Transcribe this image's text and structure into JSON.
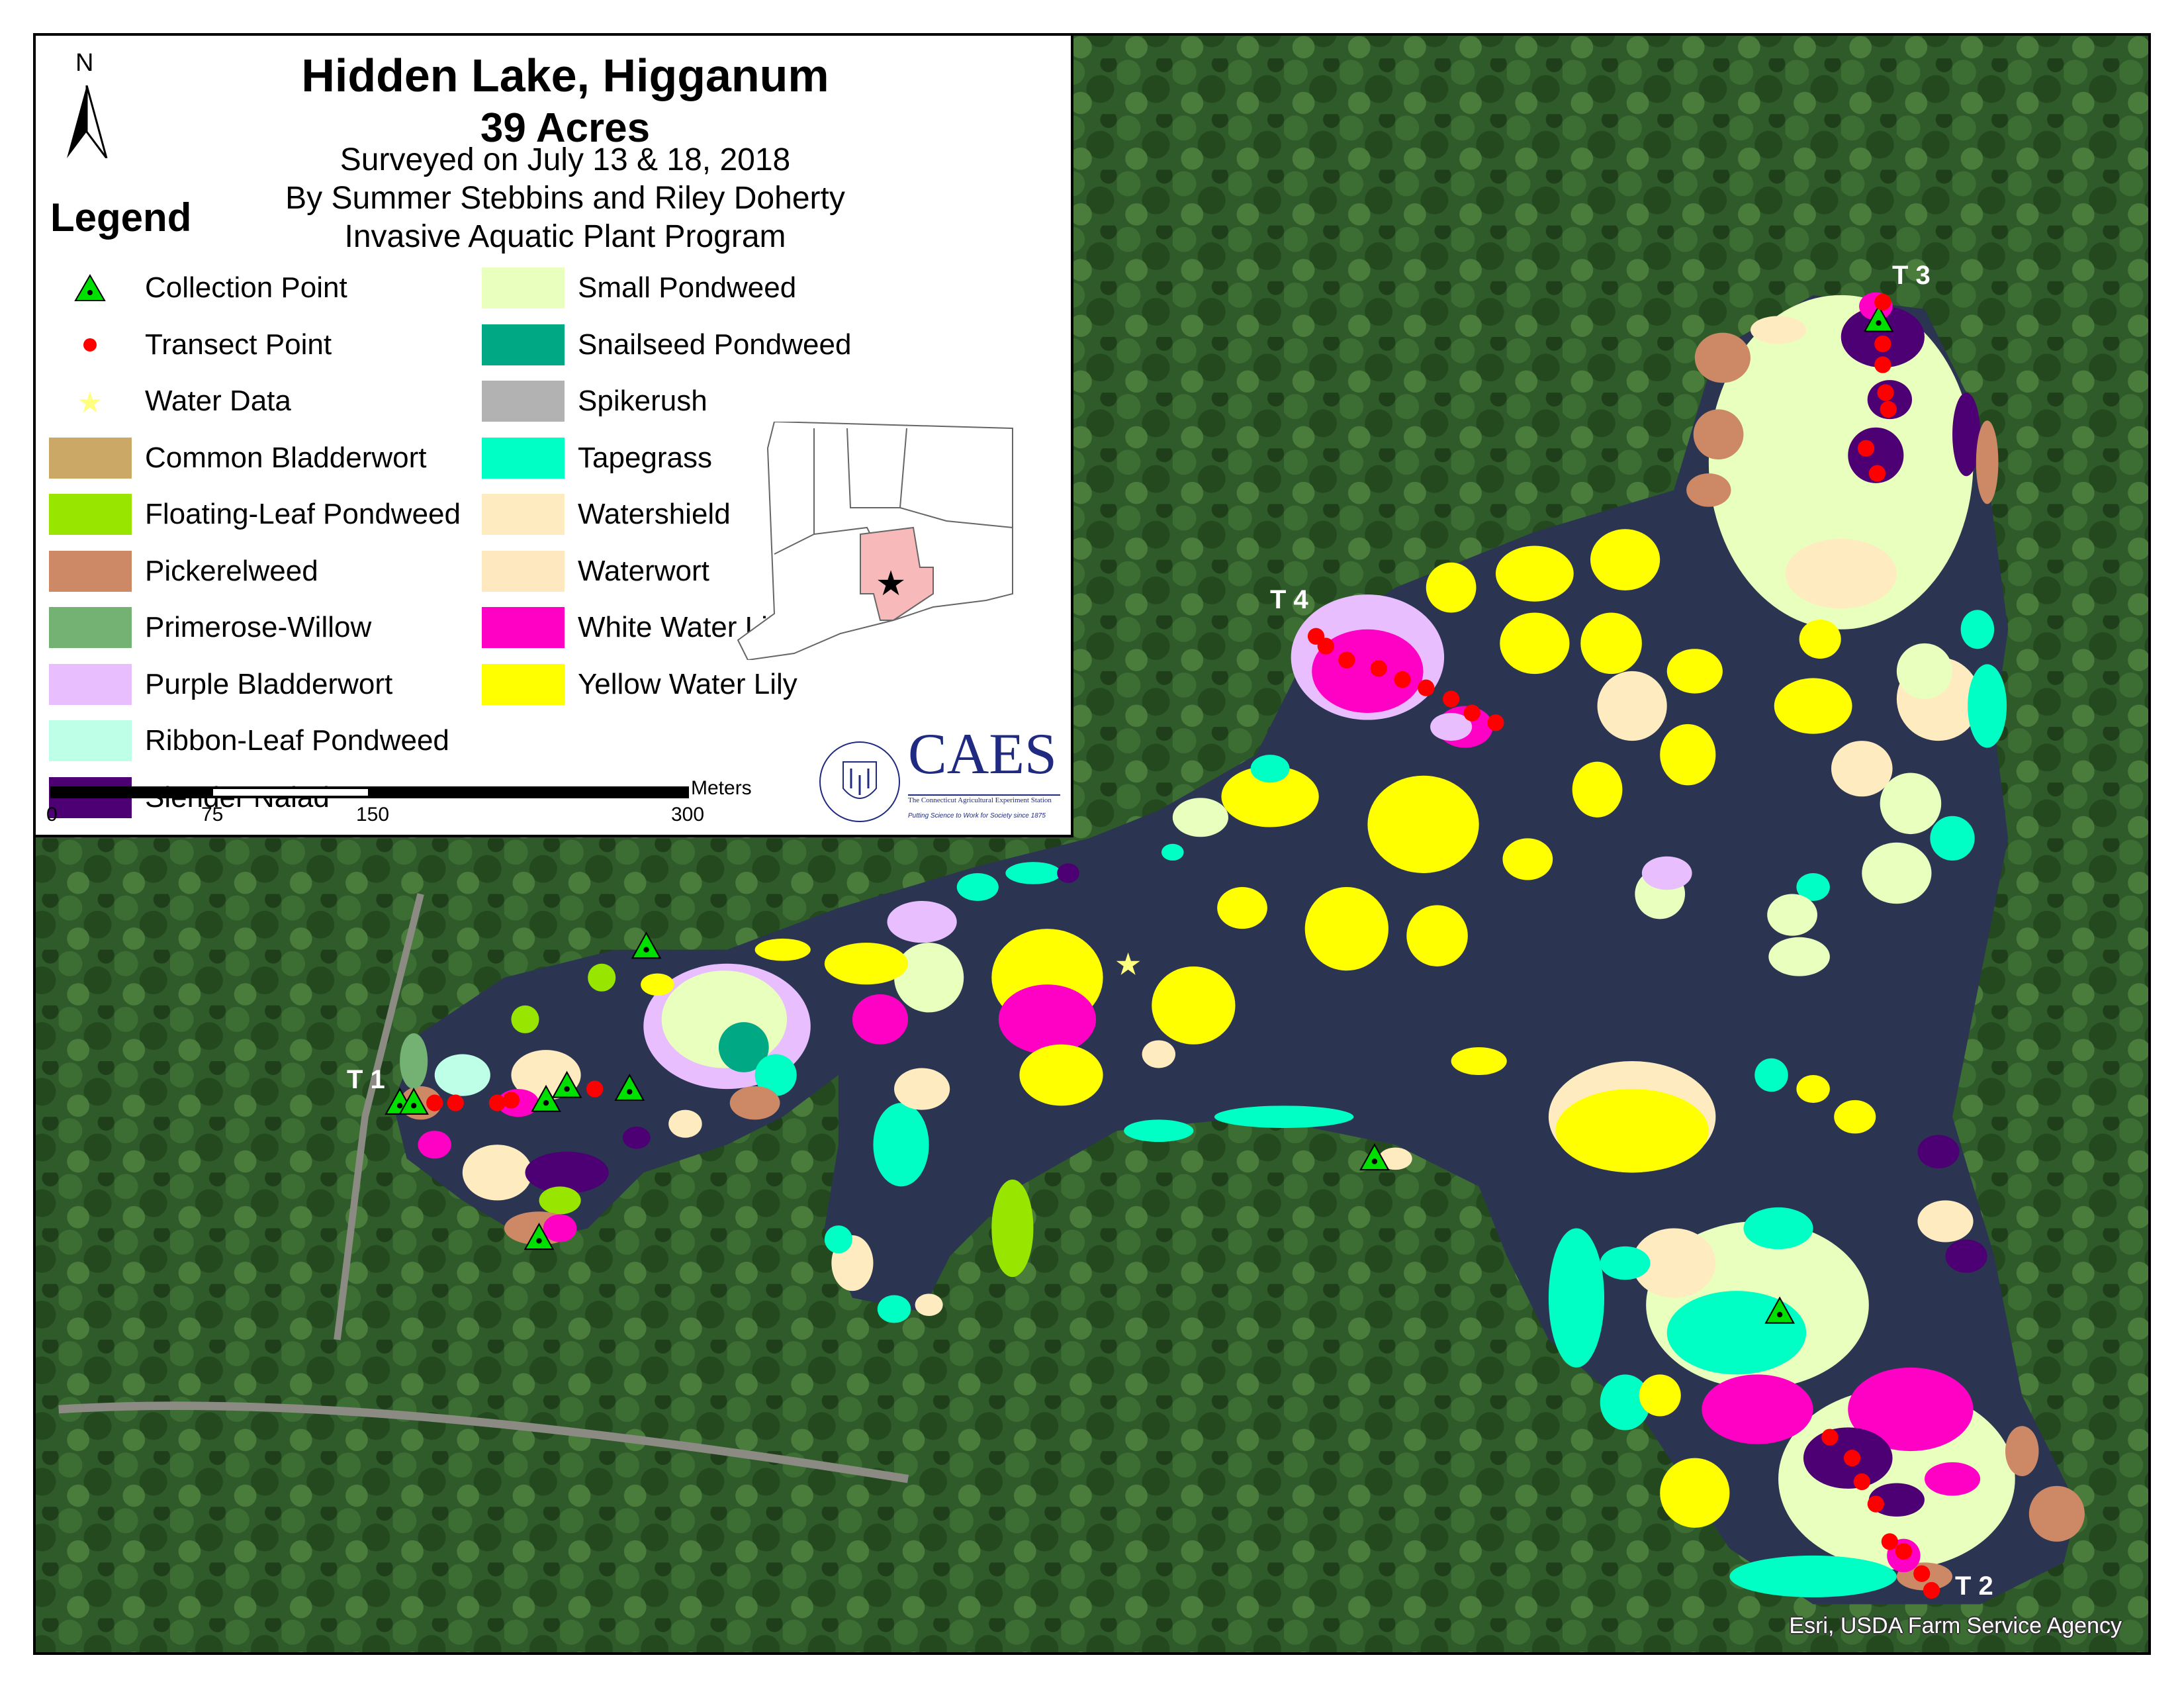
{
  "map": {
    "title": "Hidden Lake, Higganum",
    "area": "39 Acres",
    "survey_dates": "Surveyed on July 13 & 18, 2018",
    "surveyors": "By Summer Stebbins and Riley Doherty",
    "program": "Invasive Aquatic Plant Program",
    "north_label": "N",
    "legend_title": "Legend",
    "attribution": "Esri, USDA Farm Service Agency",
    "transects": [
      "T 1",
      "T 2",
      "T 3",
      "T 4"
    ]
  },
  "legend": {
    "points": [
      {
        "label": "Collection Point",
        "icon": "green-triangle-icon",
        "color": "#00e000"
      },
      {
        "label": "Transect Point",
        "icon": "red-dot-icon",
        "color": "#ff0000"
      },
      {
        "label": "Water Data",
        "icon": "yellow-star-icon",
        "color": "#ffff80"
      }
    ],
    "species": [
      {
        "key": "cb",
        "label": "Common Bladderwort",
        "color": "#cca866"
      },
      {
        "key": "flp",
        "label": "Floating-Leaf Pondweed",
        "color": "#98e600"
      },
      {
        "key": "pw",
        "label": "Pickerelweed",
        "color": "#cd8966"
      },
      {
        "key": "prw",
        "label": "Primerose-Willow",
        "color": "#73b273"
      },
      {
        "key": "pb",
        "label": "Purple Bladderwort",
        "color": "#e8beff"
      },
      {
        "key": "rlp",
        "label": "Ribbon-Leaf Pondweed",
        "color": "#beffe8"
      },
      {
        "key": "sn",
        "label": "Slender Naiad",
        "color": "#4c0073"
      },
      {
        "key": "sp",
        "label": "Small Pondweed",
        "color": "#e9ffbe"
      },
      {
        "key": "ssp",
        "label": "Snailseed Pondweed",
        "color": "#00a884"
      },
      {
        "key": "spk",
        "label": "Spikerush",
        "color": "#b2b2b2"
      },
      {
        "key": "tg",
        "label": "Tapegrass",
        "color": "#00ffc5"
      },
      {
        "key": "ws",
        "label": "Watershield",
        "color": "#ffebc0"
      },
      {
        "key": "ww",
        "label": "Waterwort",
        "color": "#fde8c0"
      },
      {
        "key": "wwl",
        "label": "White Water Lily",
        "color": "#ff00c5"
      },
      {
        "key": "ywl",
        "label": "Yellow Water Lily",
        "color": "#ffff00"
      }
    ]
  },
  "scale_bar": {
    "unit": "Meters",
    "ticks": [
      "0",
      "75",
      "150",
      "300"
    ]
  },
  "logo": {
    "name": "CAES",
    "full_name": "The Connecticut Agricultural Experiment Station",
    "tagline": "Putting Science to Work for Society since 1875",
    "seal_text": "THE CONNECTICUT AGRICULTURAL EXPERIMENT STATION",
    "color": "#1f2a80"
  },
  "colors": {
    "lake": "#2b3552",
    "forest": "#2f5a2a",
    "county_highlight": "#f7b9b9"
  }
}
